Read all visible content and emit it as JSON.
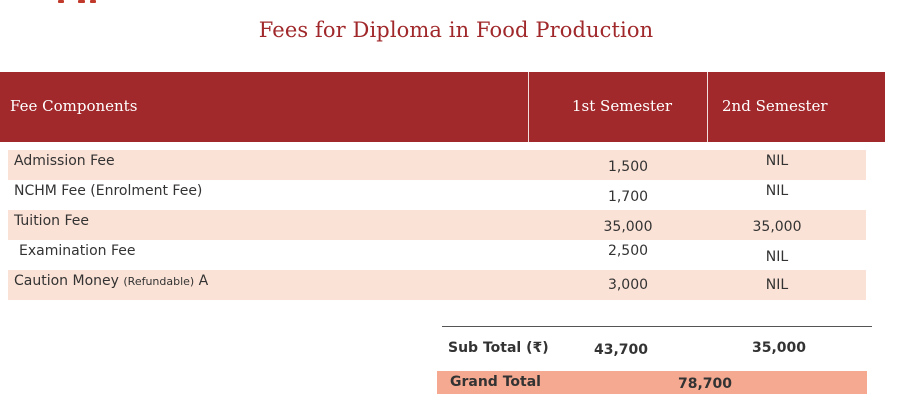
{
  "title": "Fees for Diploma in Food Production",
  "header": {
    "col1": "Fee Components",
    "col2": "1st Semester",
    "col3": "2nd Semester"
  },
  "rows": [
    {
      "label": "Admission Fee",
      "note": "",
      "suffix": "",
      "sem1": "1,500",
      "sem2": "NIL"
    },
    {
      "label": "NCHM Fee (Enrolment Fee)",
      "note": "",
      "suffix": "",
      "sem1": "1,700",
      "sem2": "NIL"
    },
    {
      "label": "Tuition Fee",
      "note": "",
      "suffix": "",
      "sem1": "35,000",
      "sem2": "35,000"
    },
    {
      "label": "Examination Fee",
      "note": "",
      "suffix": "",
      "sem1": "2,500",
      "sem2": "NIL"
    },
    {
      "label": "Caution Money ",
      "note": "(Refundable)",
      "suffix": " A",
      "sem1": "3,000",
      "sem2": "NIL"
    }
  ],
  "subtotal": {
    "label": "Sub Total (₹)",
    "sem1": "43,700",
    "sem2": "35,000"
  },
  "grand_total": {
    "label": "Grand Total",
    "value": "78,700"
  },
  "colors": {
    "header_bg": "#a1292c",
    "title": "#a0282b",
    "row_shade": "#fbe2d6",
    "grand_total_bg": "#f5a991"
  }
}
